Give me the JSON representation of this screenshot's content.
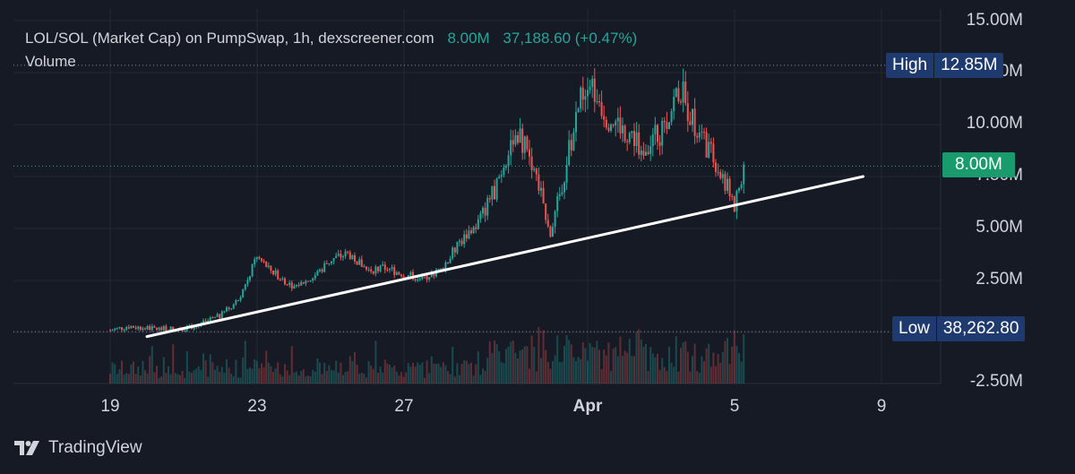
{
  "header": {
    "symbol_text": "LOL/SOL (Market Cap) on PumpSwap, 1h, dexscreener.com",
    "last_value": "8.00M",
    "change": "37,188.60 (+0.47%)",
    "volume_label": "Volume"
  },
  "brand": {
    "name": "TradingView"
  },
  "tags": {
    "high_label": "High",
    "high_value": "12.85M",
    "current_value": "8.00M",
    "low_label": "Low",
    "low_value": "38,262.80"
  },
  "colors": {
    "background": "#161a25",
    "up": "#26a69a",
    "down": "#ef5350",
    "trendline": "#ffffff",
    "grid": "#232834",
    "tag_dark": "#1e3a6e",
    "tag_green": "#1a9b6d"
  },
  "chart_data": {
    "type": "line",
    "title": "LOL/SOL (Market Cap) on PumpSwap, 1h, dexscreener.com",
    "ylabel": "",
    "xlabel": "",
    "y_ticks": [
      "15.00M",
      "12.50M",
      "10.00M",
      "7.50M",
      "5.00M",
      "2.50M",
      "-2.50M"
    ],
    "x_ticks": [
      "19",
      "23",
      "27",
      "Apr",
      "5",
      "9"
    ],
    "ylim": [
      -2.5,
      15
    ],
    "xlim": [
      "Mar 18",
      "Apr 10"
    ],
    "grid": true,
    "high": 12.85,
    "low": 0.038,
    "current": 8.0,
    "series": [
      {
        "x": [
          "Mar 19 00:00",
          "Mar 19 12:00",
          "Mar 20 00:00",
          "Mar 20 12:00",
          "Mar 21 00:00",
          "Mar 21 12:00",
          "Mar 22 00:00",
          "Mar 22 12:00",
          "Mar 23 00:00",
          "Mar 23 12:00",
          "Mar 24 00:00",
          "Mar 24 12:00",
          "Mar 25 00:00",
          "Mar 25 12:00",
          "Mar 26 00:00",
          "Mar 26 12:00",
          "Mar 27 00:00",
          "Mar 27 12:00",
          "Mar 28 00:00",
          "Mar 28 12:00",
          "Mar 29 00:00",
          "Mar 29 12:00",
          "Mar 30 00:00",
          "Mar 30 12:00",
          "Mar 31 00:00",
          "Mar 31 12:00",
          "Apr 1 00:00",
          "Apr 1 12:00",
          "Apr 2 00:00",
          "Apr 2 12:00",
          "Apr 3 00:00",
          "Apr 3 12:00",
          "Apr 4 00:00",
          "Apr 4 12:00",
          "Apr 5 00:00",
          "Apr 5 06:00"
        ],
        "values": [
          0.1,
          0.3,
          0.2,
          0.15,
          0.2,
          0.4,
          0.8,
          1.6,
          3.6,
          2.8,
          2.2,
          2.6,
          3.5,
          3.8,
          3.0,
          3.1,
          2.8,
          2.6,
          3.0,
          4.3,
          5.2,
          7.0,
          9.8,
          8.2,
          4.8,
          8.8,
          12.5,
          10.5,
          9.8,
          9.0,
          9.6,
          11.8,
          9.5,
          8.2,
          6.1,
          8.0
        ]
      }
    ],
    "trendline": {
      "start": [
        "Mar 20 00:00",
        -0.2
      ],
      "end": [
        "Apr 8 12:00",
        7.5
      ]
    }
  }
}
